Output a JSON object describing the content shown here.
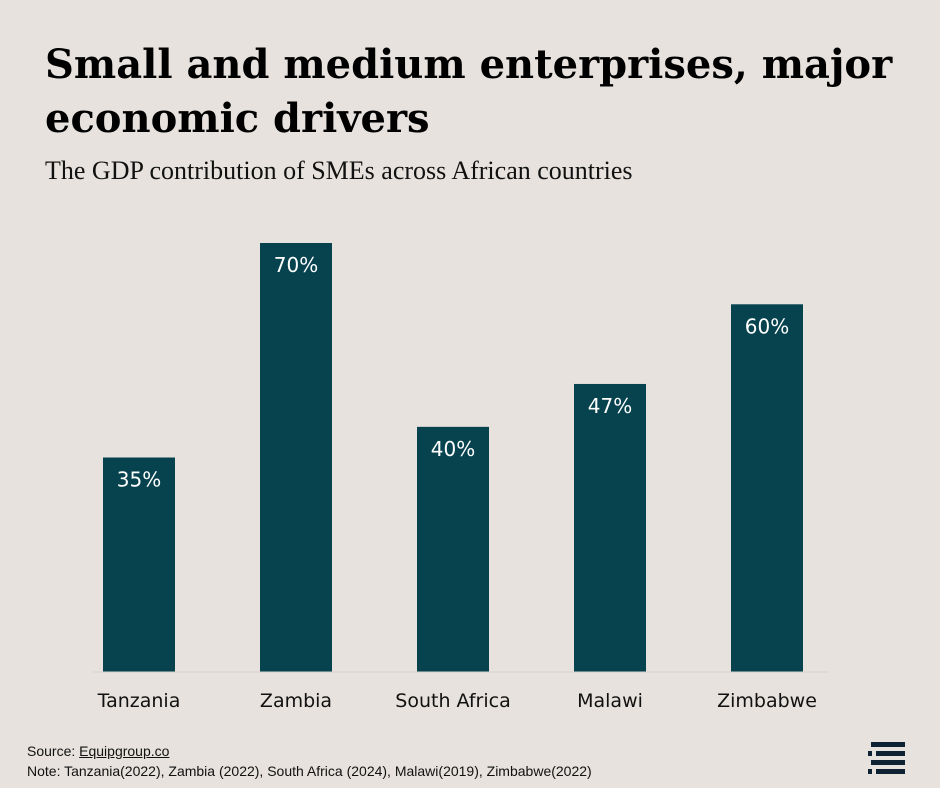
{
  "header": {
    "title": "Small and medium enterprises, major economic drivers",
    "subtitle": "The GDP contribution of SMEs across African countries"
  },
  "chart_data": {
    "type": "bar",
    "title": "Small and medium enterprises, major economic drivers",
    "subtitle": "The GDP contribution of SMEs across African countries",
    "categories": [
      "Tanzania",
      "Zambia",
      "South Africa",
      "Malawi",
      "Zimbabwe"
    ],
    "values": [
      35,
      70,
      40,
      47,
      60
    ],
    "value_labels": [
      "35%",
      "70%",
      "40%",
      "47%",
      "60%"
    ],
    "xlabel": "",
    "ylabel": "",
    "ylim": [
      0,
      70
    ],
    "grid": false,
    "legend": "none",
    "bar_color": "#06434f"
  },
  "footer": {
    "source_prefix": "Source: ",
    "source_link": "Equipgroup.co",
    "note": "Note: Tanzania(2022), Zambia (2022), South Africa (2024), Malawi(2019), Zimbabwe(2022)"
  },
  "colors": {
    "background": "#e7e2dd",
    "bar": "#06434f",
    "logo": "#0f2233"
  },
  "logo": {
    "icon": "equip-logo-icon"
  }
}
